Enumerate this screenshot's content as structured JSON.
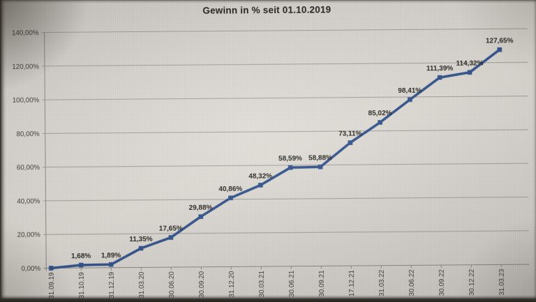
{
  "chart_data": {
    "type": "line",
    "title": "Gewinn in % seit 01.10.2019",
    "categories": [
      "31.09.19",
      "31.10.19",
      "31.12.19",
      "31.03.20",
      "30.06.20",
      "30.09.20",
      "31.12.20",
      "30.03.21",
      "30.06.21",
      "30.09.21",
      "17.12.21",
      "31.03.22",
      "30.06.22",
      "30.09.22",
      "30.12.22",
      "31.03.23"
    ],
    "series": [
      {
        "name": "Gewinn in %",
        "values": [
          0.0,
          1.68,
          1.89,
          11.35,
          17.65,
          29.88,
          40.86,
          48.32,
          58.59,
          58.88,
          73.11,
          85.02,
          98.41,
          111.39,
          114.32,
          127.65
        ]
      }
    ],
    "point_labels": [
      "",
      "1,68%",
      "1,89%",
      "11,35%",
      "17,65%",
      "29,88%",
      "40,86%",
      "48,32%",
      "58,59%",
      "58,88%",
      "73,11%",
      "85,02%",
      "98,41%",
      "111,39%",
      "114,32%",
      "127,65%"
    ],
    "y_ticks": [
      "0,00%",
      "20,00%",
      "40,00%",
      "60,00%",
      "80,00%",
      "100,00%",
      "120,00%",
      "140,00%"
    ],
    "ylim": [
      0,
      140
    ],
    "y_step": 20,
    "grid": true,
    "legend": "none",
    "x_label_rotation": -90,
    "xlabel": "",
    "ylabel": "",
    "colors": {
      "line": "#31538e",
      "grid": "#a09f9b",
      "axis": "#8a8985",
      "axis_text": "#3d3b38",
      "point_label_text": "#272520",
      "title_text": "#1d1c19",
      "screen_bg": "#dedbd6"
    }
  }
}
